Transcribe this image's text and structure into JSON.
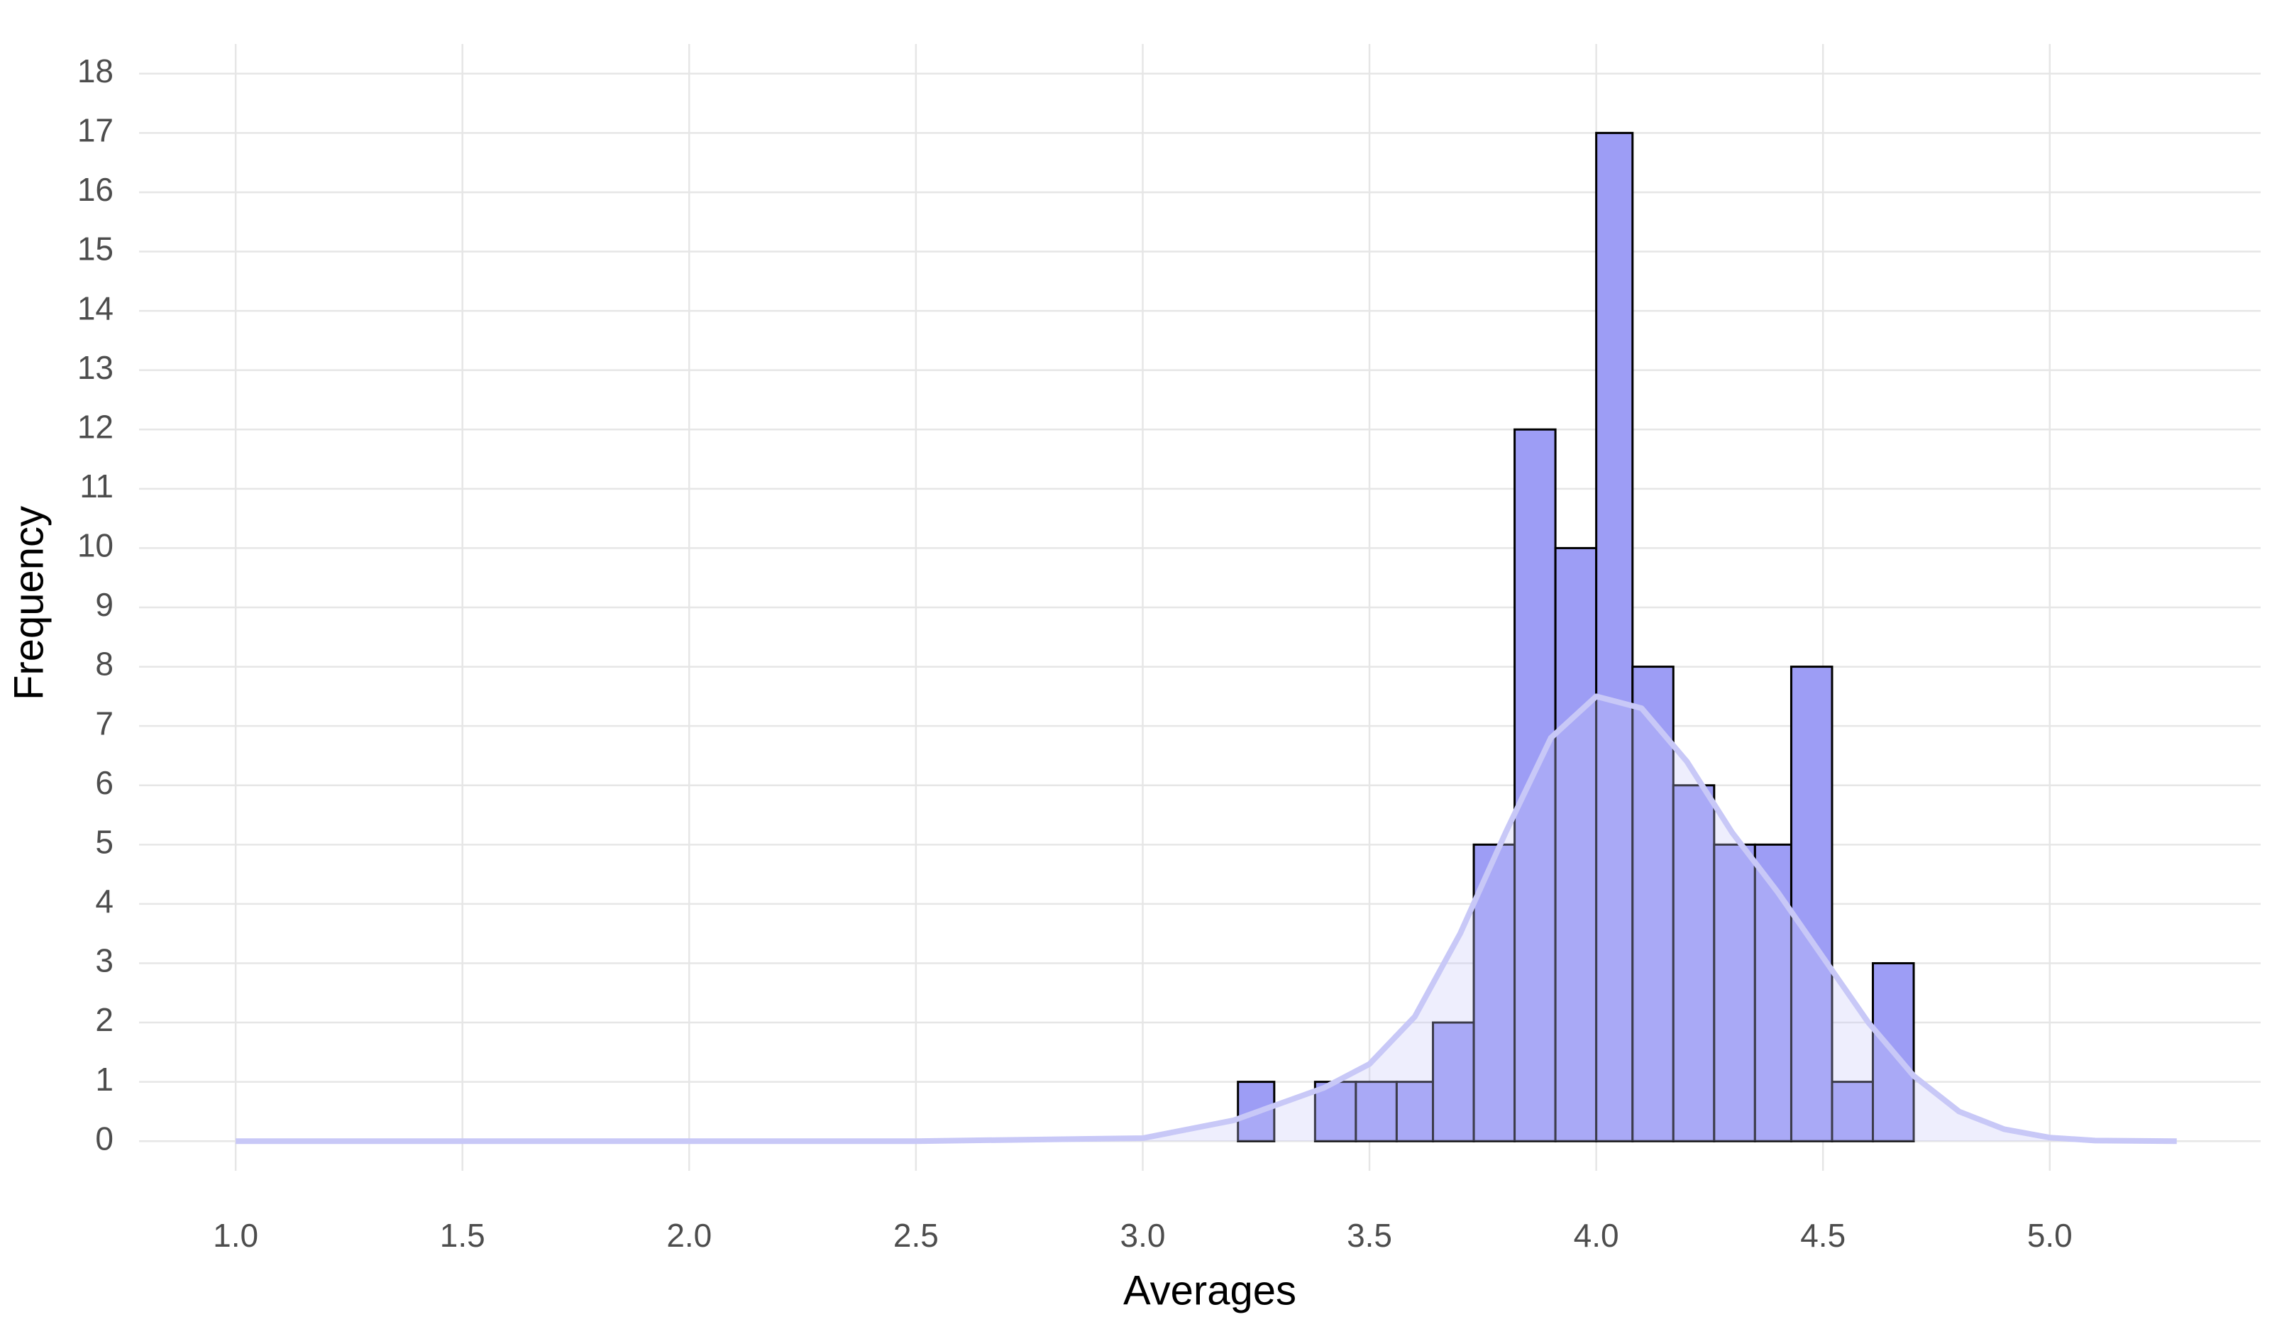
{
  "chart_data": {
    "type": "histogram",
    "x_label": "Averages",
    "y_label": "Frequency",
    "bins": [
      3.21,
      3.29,
      3.38,
      3.47,
      3.56,
      3.64,
      3.73,
      3.82,
      3.91,
      4.0,
      4.08,
      4.17,
      4.26,
      4.35,
      4.43,
      4.52,
      4.61,
      4.7
    ],
    "values": [
      1,
      0,
      1,
      1,
      1,
      2,
      5,
      12,
      10,
      17,
      8,
      6,
      5,
      5,
      8,
      1,
      3
    ],
    "color": "#9d9df5",
    "density": {
      "color": "#c8c8f7",
      "x": [
        1.0,
        2.5,
        3.0,
        3.2,
        3.4,
        3.5,
        3.6,
        3.7,
        3.8,
        3.9,
        4.0,
        4.1,
        4.2,
        4.3,
        4.4,
        4.5,
        4.6,
        4.7,
        4.8,
        4.9,
        5.0,
        5.1,
        5.28
      ],
      "values": [
        0,
        0,
        0.05,
        0.35,
        0.9,
        1.3,
        2.1,
        3.5,
        5.2,
        6.8,
        7.5,
        7.3,
        6.4,
        5.2,
        4.2,
        3.1,
        2.0,
        1.1,
        0.5,
        0.2,
        0.06,
        0.01,
        0
      ]
    },
    "xlim": [
      0.787,
      5.465
    ],
    "ylim": [
      -0.5,
      18.5
    ],
    "xticks": [
      {
        "value": 1.0,
        "label": "1.0"
      },
      {
        "value": 1.5,
        "label": "1.5"
      },
      {
        "value": 2.0,
        "label": "2.0"
      },
      {
        "value": 2.5,
        "label": "2.5"
      },
      {
        "value": 3.0,
        "label": "3.0"
      },
      {
        "value": 3.5,
        "label": "3.5"
      },
      {
        "value": 4.0,
        "label": "4.0"
      },
      {
        "value": 4.5,
        "label": "4.5"
      },
      {
        "value": 5.0,
        "label": "5.0"
      }
    ],
    "yticks": [
      0,
      1,
      2,
      3,
      4,
      5,
      6,
      7,
      8,
      9,
      10,
      11,
      12,
      13,
      14,
      15,
      16,
      17,
      18
    ],
    "grid": true
  }
}
